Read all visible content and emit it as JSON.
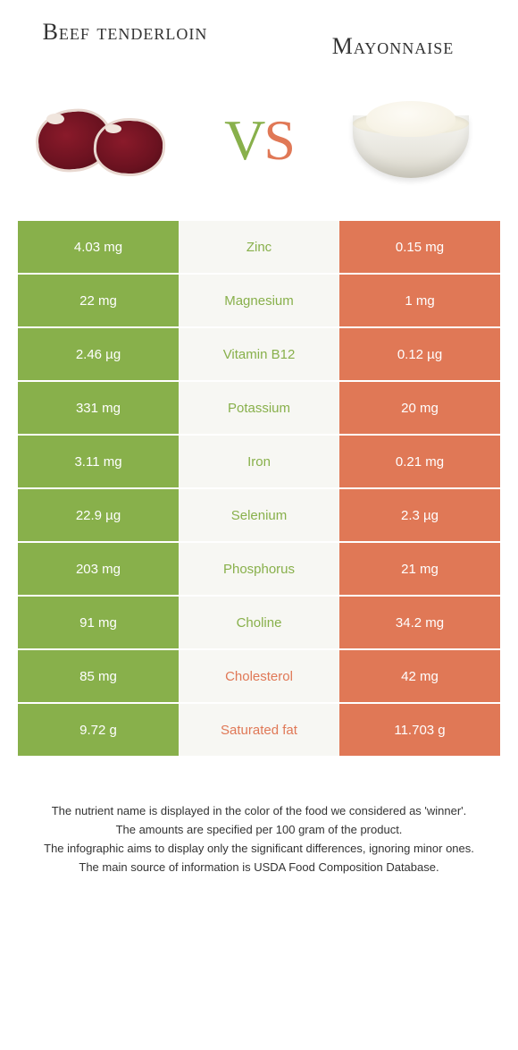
{
  "header": {
    "left": "Beef tenderloin",
    "right": "Mayonnaise",
    "vs_v": "V",
    "vs_s": "S"
  },
  "colors": {
    "green": "#88b04b",
    "orange": "#e07856",
    "mid_bg": "#f7f7f3",
    "white": "#ffffff"
  },
  "rows": [
    {
      "left": "4.03 mg",
      "mid": "Zinc",
      "right": "0.15 mg",
      "winner": "left"
    },
    {
      "left": "22 mg",
      "mid": "Magnesium",
      "right": "1 mg",
      "winner": "left"
    },
    {
      "left": "2.46 µg",
      "mid": "Vitamin B12",
      "right": "0.12 µg",
      "winner": "left"
    },
    {
      "left": "331 mg",
      "mid": "Potassium",
      "right": "20 mg",
      "winner": "left"
    },
    {
      "left": "3.11 mg",
      "mid": "Iron",
      "right": "0.21 mg",
      "winner": "left"
    },
    {
      "left": "22.9 µg",
      "mid": "Selenium",
      "right": "2.3 µg",
      "winner": "left"
    },
    {
      "left": "203 mg",
      "mid": "Phosphorus",
      "right": "21 mg",
      "winner": "left"
    },
    {
      "left": "91 mg",
      "mid": "Choline",
      "right": "34.2 mg",
      "winner": "left"
    },
    {
      "left": "85 mg",
      "mid": "Cholesterol",
      "right": "42 mg",
      "winner": "right"
    },
    {
      "left": "9.72 g",
      "mid": "Saturated fat",
      "right": "11.703 g",
      "winner": "right"
    }
  ],
  "footer": {
    "line1": "The nutrient name is displayed in the color of the food we considered as 'winner'.",
    "line2": "The amounts are specified per 100 gram of the product.",
    "line3": "The infographic aims to display only the significant differences, ignoring minor ones.",
    "line4": "The main source of information is USDA Food Composition Database."
  }
}
